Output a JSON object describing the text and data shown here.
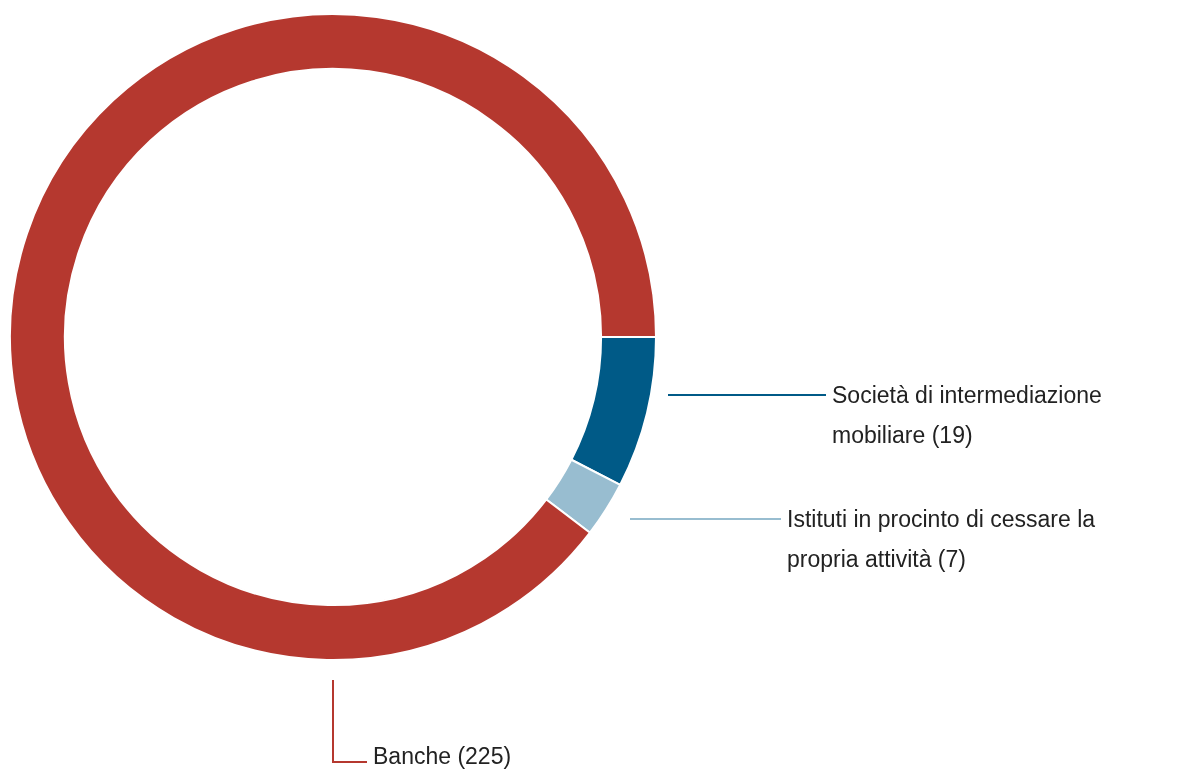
{
  "chart_data": {
    "type": "donut",
    "categories": [
      "Società di intermediazione mobiliare (19)",
      "Istituti in procinto di cessare la propria attività (7)",
      "Banche (225)"
    ],
    "values": [
      19,
      7,
      225
    ],
    "colors": [
      "#005a87",
      "#98bdd0",
      "#b5382f"
    ],
    "legend": false
  }
}
